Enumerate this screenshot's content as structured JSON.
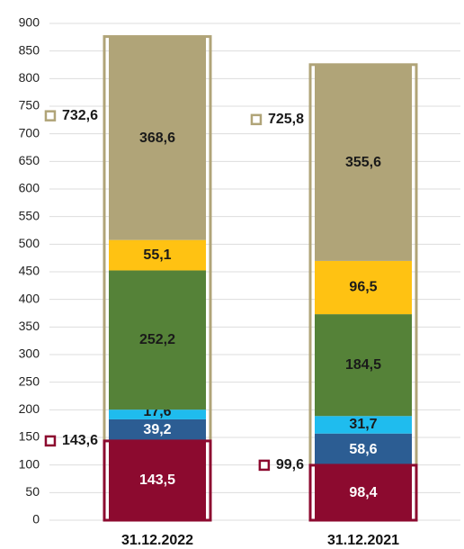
{
  "chart_data": {
    "type": "stacked_bar",
    "categories": [
      "31.12.2022",
      "31.12.2021"
    ],
    "series": [
      {
        "color": "#8c0a2f",
        "label_color": "#ffffff",
        "values": [
          143.5,
          98.4
        ],
        "value_labels": [
          "143,5",
          "98,4"
        ]
      },
      {
        "color": "#2c5d93",
        "label_color": "#ffffff",
        "values": [
          39.2,
          58.6
        ],
        "value_labels": [
          "39,2",
          "58,6"
        ]
      },
      {
        "color": "#1fbcee",
        "label_color": "#1a1a1a",
        "values": [
          17.6,
          31.7
        ],
        "value_labels": [
          "17,6",
          "31,7"
        ]
      },
      {
        "color": "#558238",
        "label_color": "#1a1a1a",
        "values": [
          252.2,
          184.5
        ],
        "value_labels": [
          "252,2",
          "184,5"
        ]
      },
      {
        "color": "#ffc212",
        "label_color": "#1a1a1a",
        "values": [
          55.1,
          96.5
        ],
        "value_labels": [
          "55,1",
          "96,5"
        ]
      },
      {
        "color": "#b0a478",
        "label_color": "#1a1a1a",
        "values": [
          368.6,
          355.6
        ],
        "value_labels": [
          "368,6",
          "355,6"
        ]
      }
    ],
    "markers": [
      {
        "color": "#b0a478",
        "values": [
          732.6,
          725.8
        ],
        "value_labels": [
          "732,6",
          "725,8"
        ]
      },
      {
        "color": "#8c0a2f",
        "values": [
          143.6,
          99.6
        ],
        "value_labels": [
          "143,6",
          "99,6"
        ]
      }
    ],
    "ylim": [
      0,
      900
    ],
    "yticks": [
      0,
      50,
      100,
      150,
      200,
      250,
      300,
      350,
      400,
      450,
      500,
      550,
      600,
      650,
      700,
      750,
      800,
      850,
      900
    ],
    "grid": true
  }
}
